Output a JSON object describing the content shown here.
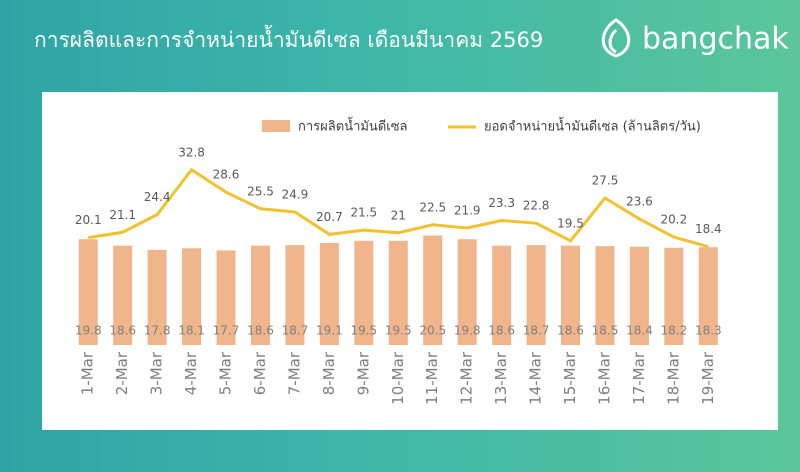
{
  "brand": "bangchak",
  "chart_data": {
    "type": "bar",
    "title": "การผลิตและการจำหน่ายน้ำมันดีเซล เดือนมีนาคม 2569",
    "categories": [
      "1-Mar",
      "2-Mar",
      "3-Mar",
      "4-Mar",
      "5-Mar",
      "6-Mar",
      "7-Mar",
      "8-Mar",
      "9-Mar",
      "10-Mar",
      "11-Mar",
      "12-Mar",
      "13-Mar",
      "14-Mar",
      "15-Mar",
      "16-Mar",
      "17-Mar",
      "18-Mar",
      "19-Mar"
    ],
    "series": [
      {
        "name": "การผลิตน้ำมันดีเซล",
        "type": "bar",
        "color": "#f1b58c",
        "values": [
          19.8,
          18.6,
          17.8,
          18.1,
          17.7,
          18.6,
          18.7,
          19.1,
          19.5,
          19.5,
          20.5,
          19.8,
          18.6,
          18.7,
          18.6,
          18.5,
          18.4,
          18.2,
          18.3
        ]
      },
      {
        "name": "ยอดจำหน่ายน้ำมันดีเซล (ล้านลิตร/วัน)",
        "type": "line",
        "color": "#f2c12e",
        "values": [
          20.1,
          21.1,
          24.4,
          32.8,
          28.6,
          25.5,
          24.9,
          20.7,
          21.5,
          21,
          22.5,
          21.9,
          23.3,
          22.8,
          19.5,
          27.5,
          23.6,
          20.2,
          18.4
        ]
      }
    ],
    "ylim": [
      0,
      35
    ],
    "legend": "top"
  }
}
